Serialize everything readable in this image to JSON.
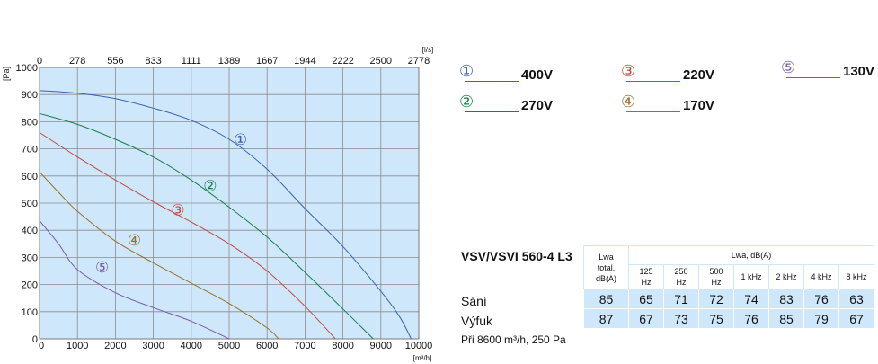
{
  "chart_data": {
    "type": "line",
    "xlabel": "[m³/h]",
    "ylabel": "[Pa]",
    "x2label": "[l/s]",
    "xlim": [
      0,
      10000
    ],
    "ylim": [
      0,
      1000
    ],
    "x_ticks": [
      "0",
      "1000",
      "2000",
      "3000",
      "4000",
      "5000",
      "6000",
      "7000",
      "8000",
      "9000",
      "10000"
    ],
    "y_ticks": [
      "0",
      "100",
      "200",
      "300",
      "400",
      "500",
      "600",
      "700",
      "800",
      "900",
      "1000"
    ],
    "x2_ticks": [
      "0",
      "278",
      "556",
      "833",
      "1111",
      "1389",
      "1667",
      "1944",
      "2222",
      "2500",
      "2778"
    ],
    "grid": true,
    "series": [
      {
        "name": "400V",
        "marker": "①",
        "color": "#3a62b0",
        "label_at": [
          5300,
          735
        ],
        "x": [
          0,
          1000,
          2000,
          3000,
          4000,
          5000,
          6000,
          7000,
          8000,
          9000,
          9500,
          9800
        ],
        "y": [
          915,
          905,
          885,
          850,
          805,
          735,
          625,
          480,
          340,
          175,
          80,
          0
        ]
      },
      {
        "name": "270V",
        "marker": "②",
        "color": "#15804a",
        "label_at": [
          4500,
          565
        ],
        "x": [
          0,
          1000,
          2000,
          3000,
          4000,
          5000,
          6000,
          7000,
          8000,
          8800
        ],
        "y": [
          830,
          790,
          735,
          670,
          585,
          485,
          375,
          245,
          110,
          0
        ]
      },
      {
        "name": "220V",
        "marker": "③",
        "color": "#c04a3e",
        "label_at": [
          3650,
          475
        ],
        "x": [
          0,
          1000,
          2000,
          3000,
          4000,
          5000,
          6000,
          7000,
          7800
        ],
        "y": [
          760,
          670,
          585,
          505,
          430,
          350,
          250,
          120,
          0
        ]
      },
      {
        "name": "170V",
        "marker": "④",
        "color": "#9a6f2a",
        "label_at": [
          2500,
          365
        ],
        "x": [
          0,
          500,
          1000,
          2000,
          3000,
          4000,
          5000,
          6000,
          6300
        ],
        "y": [
          615,
          540,
          470,
          360,
          280,
          205,
          130,
          40,
          0
        ]
      },
      {
        "name": "130V",
        "marker": "⑤",
        "color": "#7a5aaa",
        "label_at": [
          1650,
          265
        ],
        "x": [
          0,
          500,
          1000,
          2000,
          3000,
          4000,
          5000
        ],
        "y": [
          435,
          350,
          255,
          170,
          115,
          65,
          0
        ]
      }
    ]
  },
  "noise": {
    "model": "VSV/VSVI 560-4 L3",
    "total_header": [
      "Lwa",
      "total,",
      "dB(A)"
    ],
    "band_header": "Lwa, dB(A)",
    "bands": [
      [
        "125",
        "Hz"
      ],
      [
        "250",
        "Hz"
      ],
      [
        "500",
        "Hz"
      ],
      [
        "1 kHz"
      ],
      [
        "2 kHz"
      ],
      [
        "4 kHz"
      ],
      [
        "8 kHz"
      ]
    ],
    "rows": [
      {
        "label": "Sání",
        "values": [
          "85",
          "65",
          "71",
          "72",
          "74",
          "83",
          "76",
          "63"
        ]
      },
      {
        "label": "Výfuk",
        "values": [
          "87",
          "67",
          "73",
          "75",
          "76",
          "85",
          "79",
          "67"
        ]
      }
    ],
    "footnote": "Při 8600 m³/h, 250 Pa"
  }
}
